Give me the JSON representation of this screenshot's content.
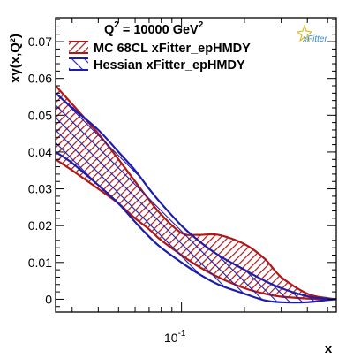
{
  "chart_data": {
    "type": "area",
    "title_q2": "Q",
    "title_q2_sup": "2",
    "title_value": " = 10000 GeV",
    "title_unit_sup": "2",
    "ylabel": "xγ(x,Q²)",
    "xlabel": "x",
    "xscale": "log",
    "xlim": [
      0.025,
      0.55
    ],
    "ylim": [
      -0.0035,
      0.0765
    ],
    "y_ticks": [
      0,
      0.01,
      0.02,
      0.03,
      0.04,
      0.05,
      0.06,
      0.07
    ],
    "y_tick_labels": [
      "0",
      "0.01",
      "0.02",
      "0.03",
      "0.04",
      "0.05",
      "0.06",
      "0.07"
    ],
    "x_tick_label_base": "10",
    "x_tick_label_exp": "-1",
    "legend_position": "top-left",
    "logo": "xFitter",
    "series": [
      {
        "name": "MC 68CL xFitter_epHMDY",
        "color": "#b01818",
        "x": [
          0.025,
          0.03,
          0.04,
          0.05,
          0.06,
          0.07,
          0.08,
          0.1,
          0.12,
          0.15,
          0.2,
          0.25,
          0.3,
          0.4,
          0.5,
          0.55
        ],
        "upper": [
          0.058,
          0.053,
          0.045,
          0.038,
          0.032,
          0.027,
          0.023,
          0.018,
          0.0175,
          0.0175,
          0.015,
          0.011,
          0.006,
          0.0015,
          0.0003,
          0.0
        ],
        "lower": [
          0.038,
          0.035,
          0.03,
          0.026,
          0.022,
          0.019,
          0.016,
          0.012,
          0.009,
          0.006,
          0.003,
          0.0015,
          0.0007,
          0.0002,
          0.0,
          0.0
        ]
      },
      {
        "name": "Hessian xFitter_epHMDY",
        "color": "#1c1cae",
        "x": [
          0.025,
          0.03,
          0.04,
          0.05,
          0.06,
          0.07,
          0.08,
          0.1,
          0.12,
          0.15,
          0.2,
          0.25,
          0.3,
          0.4,
          0.5,
          0.55
        ],
        "upper": [
          0.056,
          0.052,
          0.046,
          0.04,
          0.035,
          0.03,
          0.026,
          0.02,
          0.016,
          0.012,
          0.008,
          0.005,
          0.003,
          0.0008,
          0.0001,
          0.0
        ],
        "lower": [
          0.04,
          0.037,
          0.031,
          0.026,
          0.021,
          0.017,
          0.014,
          0.01,
          0.007,
          0.004,
          0.0015,
          -0.0003,
          -0.0008,
          -0.0008,
          -0.0002,
          0.0
        ]
      }
    ]
  }
}
